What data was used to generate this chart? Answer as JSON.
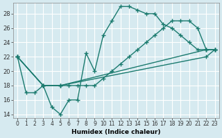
{
  "xlabel": "Humidex (Indice chaleur)",
  "ylabel": "",
  "background_color": "#d6eaf0",
  "grid_color": "#ffffff",
  "line_color": "#1a7a6e",
  "xlim": [
    -0.5,
    23.5
  ],
  "ylim": [
    13.5,
    29.5
  ],
  "xticks": [
    0,
    1,
    2,
    3,
    4,
    5,
    6,
    7,
    8,
    9,
    10,
    11,
    12,
    13,
    14,
    15,
    16,
    17,
    18,
    19,
    20,
    21,
    22,
    23
  ],
  "yticks": [
    14,
    16,
    18,
    20,
    22,
    24,
    26,
    28
  ],
  "lines": [
    {
      "x": [
        0,
        1,
        2,
        3,
        4,
        5,
        6,
        7,
        8,
        9,
        10,
        11,
        12,
        13,
        14,
        15,
        16,
        17,
        18,
        19,
        20,
        21,
        22,
        23
      ],
      "y": [
        22,
        17,
        17,
        18,
        15,
        14,
        16,
        16,
        22.5,
        20,
        25,
        27,
        29,
        29,
        28.5,
        28,
        28,
        26.5,
        26,
        25,
        24,
        23,
        23,
        23
      ]
    },
    {
      "x": [
        0,
        3,
        5,
        6,
        7,
        8,
        9,
        10,
        11,
        12,
        13,
        14,
        15,
        16,
        17,
        18,
        19,
        20,
        21,
        22,
        23
      ],
      "y": [
        22,
        18,
        18,
        18,
        18,
        18,
        18,
        19,
        20,
        21,
        22,
        23,
        24,
        25,
        26,
        27,
        27,
        27,
        26,
        23,
        23
      ]
    },
    {
      "x": [
        0,
        3,
        5,
        22,
        23
      ],
      "y": [
        22,
        18,
        18,
        23,
        23
      ]
    },
    {
      "x": [
        0,
        3,
        5,
        22,
        23
      ],
      "y": [
        22,
        18,
        18,
        22,
        23
      ]
    }
  ]
}
